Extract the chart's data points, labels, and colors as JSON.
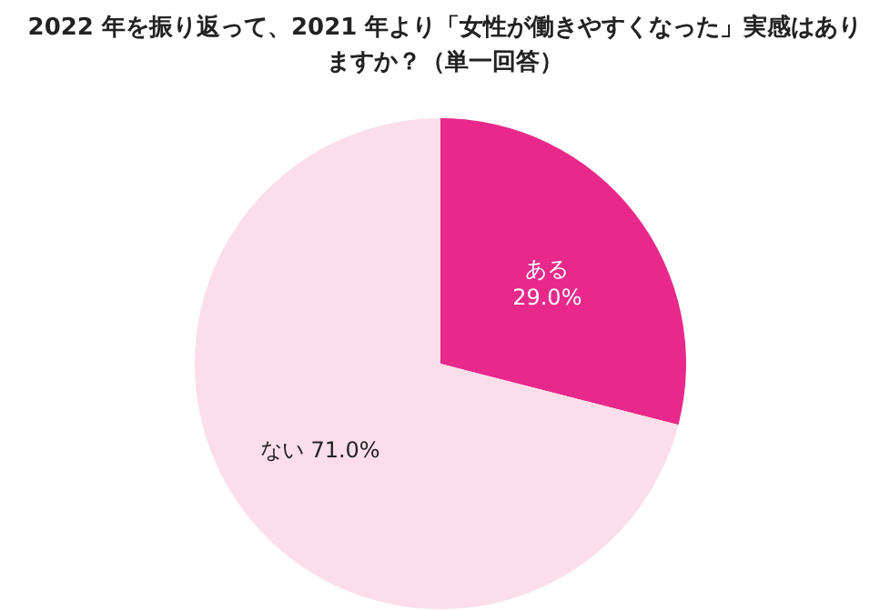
{
  "chart_data": {
    "type": "pie",
    "title": "2022 年を振り返って、2021 年より「女性が働きやすくなった」実感はありますか？（単一回答）",
    "categories": [
      "ある",
      "ない"
    ],
    "values": [
      29.0,
      71.0
    ],
    "value_labels": [
      "29.0%",
      "71.0%"
    ],
    "colors": [
      "#e8298b",
      "#fbdee9"
    ]
  }
}
